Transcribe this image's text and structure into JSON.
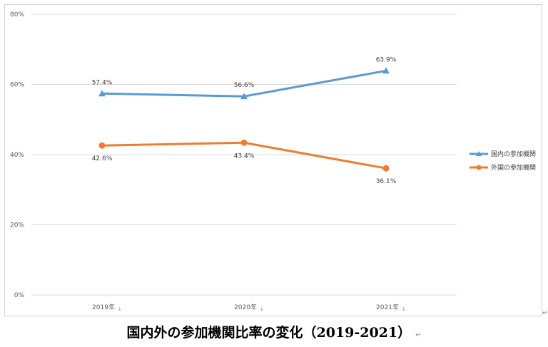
{
  "caption": {
    "text": "国内外の参加機関比率の変化（2019-2021）",
    "mark": "↵"
  },
  "frame_mark": "↵",
  "chart_data": {
    "type": "line",
    "categories": [
      "2019年",
      "2020年",
      "2021年"
    ],
    "category_suffix": "↓",
    "ylim": [
      0,
      80
    ],
    "yticks": [
      0,
      20,
      40,
      60,
      80
    ],
    "ytick_labels": [
      "0%",
      "20%",
      "40%",
      "60%",
      "80%"
    ],
    "grid": true,
    "legend_position": "right",
    "series": [
      {
        "name": "国内の参加機関",
        "values": [
          57.4,
          56.6,
          63.9
        ],
        "labels": [
          "57.4%",
          "56.6%",
          "63.9%"
        ],
        "color": "#5b9bd5",
        "marker": "triangle",
        "label_position": "above"
      },
      {
        "name": "外国の参加機関",
        "values": [
          42.6,
          43.4,
          36.1
        ],
        "labels": [
          "42.6%",
          "43.4%",
          "36.1%"
        ],
        "color": "#ed7d31",
        "marker": "circle",
        "label_position": "below"
      }
    ]
  }
}
